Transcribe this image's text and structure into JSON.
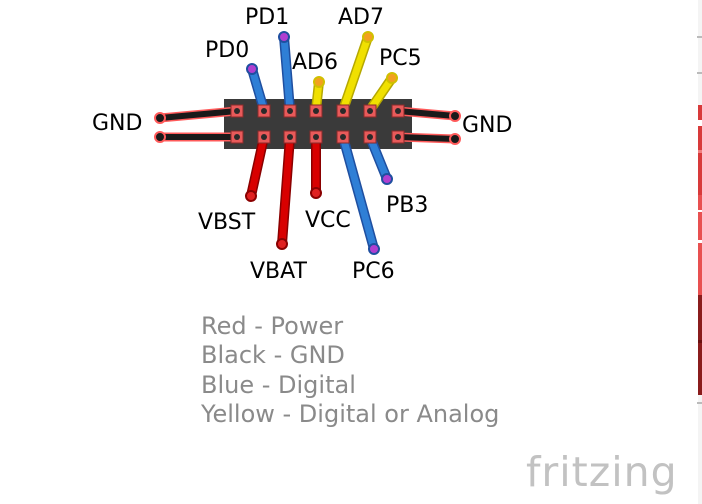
{
  "pins": {
    "pd0": "PD0",
    "pd1": "PD1",
    "ad6": "AD6",
    "ad7": "AD7",
    "pc5": "PC5",
    "gnd_left": "GND",
    "gnd_right": "GND",
    "vbst": "VBST",
    "vbat": "VBAT",
    "vcc": "VCC",
    "pc6": "PC6",
    "pb3": "PB3"
  },
  "legend": [
    "Red - Power",
    "Black - GND",
    "Blue - Digital",
    "Yellow - Digital or Analog"
  ],
  "logo": "fritzing",
  "colors": {
    "power": "#d80000",
    "ground": "#1a1a1a",
    "digital": "#2f7fd6",
    "analog": "#f0e000",
    "header_body": "#3a3a3a",
    "pin_highlight": "#e85a5a"
  }
}
